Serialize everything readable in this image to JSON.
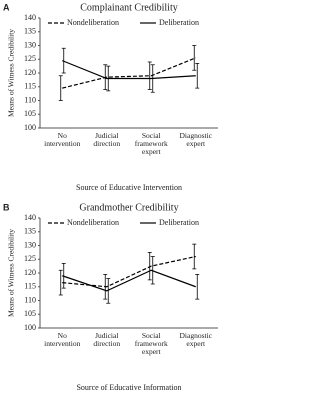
{
  "chart_data": [
    {
      "type": "line",
      "panel_label": "A",
      "title": "Complainant Credibility",
      "x_label": "Source of Educative Intervention",
      "y_label": "Means of Witness Credibility",
      "categories": [
        "No intervention",
        "Judicial direction",
        "Social framework expert",
        "Diagnostic expert"
      ],
      "ylim": [
        100,
        140
      ],
      "yticks": [
        100,
        105,
        110,
        115,
        120,
        125,
        130,
        135,
        140
      ],
      "series": [
        {
          "name": "Nondeliberation",
          "color": "#000000",
          "line_style": "dashed",
          "values": [
            114.5,
            118.5,
            119,
            125.5
          ],
          "errors": [
            4.5,
            4.5,
            5,
            4.5
          ]
        },
        {
          "name": "Deliberation",
          "color": "#000000",
          "line_style": "solid",
          "values": [
            124.5,
            118,
            118,
            119
          ],
          "errors": [
            4.5,
            4.5,
            5,
            4.5
          ]
        }
      ]
    },
    {
      "type": "line",
      "panel_label": "B",
      "title": "Grandmother Credibility",
      "x_label": "Source of Educative Information",
      "y_label": "Means of Witness Credibility",
      "categories": [
        "No intervention",
        "Judicial direction",
        "Social framework expert",
        "Diagnostic expert"
      ],
      "ylim": [
        100,
        140
      ],
      "yticks": [
        100,
        105,
        110,
        115,
        120,
        125,
        130,
        135,
        140
      ],
      "series": [
        {
          "name": "Nondeliberation",
          "color": "#000000",
          "line_style": "dashed",
          "values": [
            116.5,
            115,
            122.5,
            126
          ],
          "errors": [
            4.5,
            4.5,
            5,
            4.5
          ]
        },
        {
          "name": "Deliberation",
          "color": "#000000",
          "line_style": "solid",
          "values": [
            119,
            113.5,
            121,
            115
          ],
          "errors": [
            4.5,
            4.5,
            5,
            4.5
          ]
        }
      ]
    }
  ]
}
